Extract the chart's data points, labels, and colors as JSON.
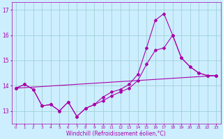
{
  "xlabel": "Windchill (Refroidissement éolien,°C)",
  "line_color": "#aa00aa",
  "background_color": "#cceeff",
  "grid_color": "#99cccc",
  "xlim": [
    -0.5,
    23.5
  ],
  "ylim": [
    12.5,
    17.3
  ],
  "yticks": [
    13,
    14,
    15,
    16,
    17
  ],
  "xticks": [
    0,
    1,
    2,
    3,
    4,
    5,
    6,
    7,
    8,
    9,
    10,
    11,
    12,
    13,
    14,
    15,
    16,
    17,
    18,
    19,
    20,
    21,
    22,
    23
  ],
  "line_spike_x": [
    0,
    1,
    2,
    3,
    4,
    5,
    6,
    7,
    8,
    9,
    10,
    11,
    12,
    13,
    14,
    15,
    16,
    17,
    18,
    19,
    20,
    21,
    22,
    23
  ],
  "line_spike_y": [
    13.9,
    14.05,
    13.85,
    13.2,
    13.25,
    13.0,
    13.35,
    12.78,
    13.1,
    13.25,
    13.55,
    13.75,
    13.85,
    14.05,
    14.45,
    15.5,
    16.6,
    16.85,
    16.0,
    15.1,
    14.75,
    14.5,
    14.4,
    14.4
  ],
  "line_mid_x": [
    0,
    1,
    2,
    3,
    4,
    5,
    6,
    7,
    8,
    9,
    10,
    11,
    12,
    13,
    14,
    15,
    16,
    17,
    18,
    19,
    20,
    21,
    22,
    23
  ],
  "line_mid_y": [
    13.9,
    14.05,
    13.85,
    13.2,
    13.25,
    13.0,
    13.35,
    12.78,
    13.1,
    13.25,
    13.4,
    13.6,
    13.75,
    13.9,
    14.2,
    14.85,
    15.4,
    15.5,
    16.0,
    15.1,
    14.75,
    14.5,
    14.4,
    14.4
  ],
  "line_trend_x": [
    0,
    23
  ],
  "line_trend_y": [
    13.9,
    14.4
  ]
}
